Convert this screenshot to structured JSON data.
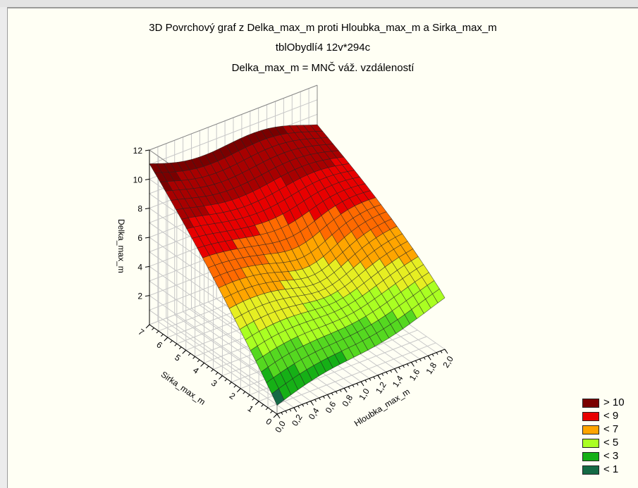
{
  "chart_data": {
    "type": "surface",
    "title": "3D Povrchový graf z Delka_max_m proti Hloubka_max_m  a  Sirka_max_m",
    "subtitles": [
      "tblObydlí4 12v*294c",
      "Delka_max_m = MNČ váž. vzdáleností"
    ],
    "x_axis": {
      "label": "Hloubka_max_m",
      "range": [
        0.0,
        2.0
      ],
      "ticks": [
        "0,0",
        "0,2",
        "0,4",
        "0,6",
        "0,8",
        "1,0",
        "1,2",
        "1,4",
        "1,6",
        "1,8",
        "2,0"
      ]
    },
    "y_axis": {
      "label": "Sirka_max_m",
      "range": [
        0,
        7
      ],
      "ticks": [
        "0",
        "1",
        "2",
        "3",
        "4",
        "5",
        "6",
        "7"
      ]
    },
    "z_axis": {
      "label": "Delka_max_m",
      "range": [
        0,
        12
      ],
      "ticks": [
        "2",
        "4",
        "6",
        "8",
        "10",
        "12"
      ]
    },
    "surface_samples": {
      "description_units": "Delka_max_m values at grid corners and mid-edges",
      "points": [
        {
          "hloubka": 0.0,
          "sirka": 0,
          "delka": 0.6
        },
        {
          "hloubka": 2.0,
          "sirka": 0,
          "delka": 3.3
        },
        {
          "hloubka": 0.0,
          "sirka": 7,
          "delka": 11.0
        },
        {
          "hloubka": 2.0,
          "sirka": 7,
          "delka": 9.5
        },
        {
          "hloubka": 1.0,
          "sirka": 3.5,
          "delka": 4.5
        }
      ]
    },
    "legend": [
      {
        "label": "> 10",
        "color": "#7a0000"
      },
      {
        "label": "< 9",
        "color": "#e80000"
      },
      {
        "label": "< 7",
        "color": "#ffa500"
      },
      {
        "label": "< 5",
        "color": "#aaff22"
      },
      {
        "label": "< 3",
        "color": "#16b016"
      },
      {
        "label": "< 1",
        "color": "#156a45"
      }
    ],
    "legend_position": "bottom-right",
    "grid": true
  }
}
